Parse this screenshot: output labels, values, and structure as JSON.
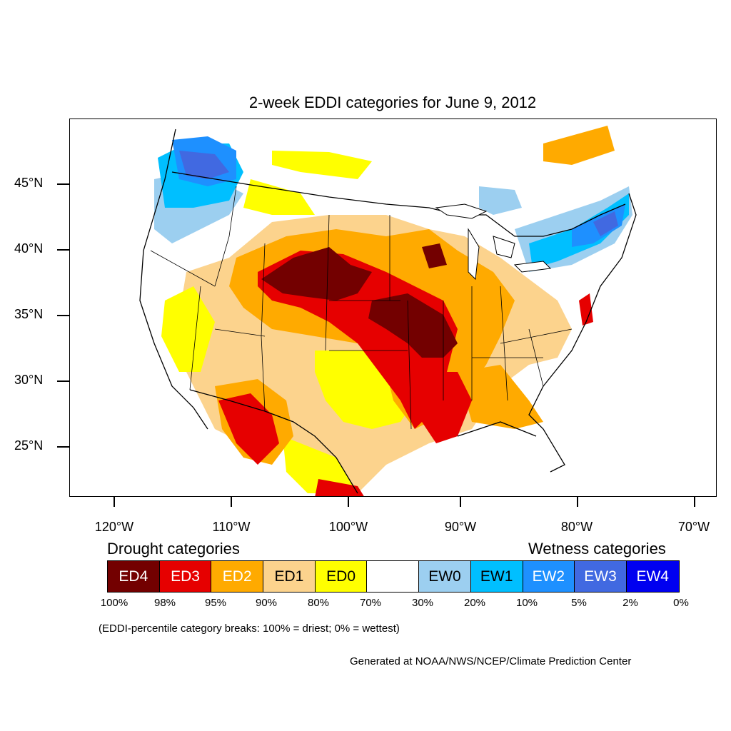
{
  "title": "2-week EDDI categories for June 9, 2012",
  "lat_labels": [
    "45°N",
    "40°N",
    "35°N",
    "30°N",
    "25°N"
  ],
  "lon_labels": [
    "120°W",
    "110°W",
    "100°W",
    "90°W",
    "80°W",
    "70°W"
  ],
  "legend": {
    "drought_heading": "Drought categories",
    "wetness_heading": "Wetness categories",
    "categories": [
      {
        "label": "ED4",
        "color": "#730000",
        "text_color": "#ffffff"
      },
      {
        "label": "ED3",
        "color": "#e60000",
        "text_color": "#ffffff"
      },
      {
        "label": "ED2",
        "color": "#ffaa00",
        "text_color": "#ffffff"
      },
      {
        "label": "ED1",
        "color": "#fcd38d",
        "text_color": "#000000"
      },
      {
        "label": "ED0",
        "color": "#ffff00",
        "text_color": "#000000"
      },
      {
        "label": "",
        "color": "#ffffff",
        "text_color": "#000000"
      },
      {
        "label": "EW0",
        "color": "#9ccff0",
        "text_color": "#000000"
      },
      {
        "label": "EW1",
        "color": "#00bfff",
        "text_color": "#000000"
      },
      {
        "label": "EW2",
        "color": "#1e90ff",
        "text_color": "#ffffff"
      },
      {
        "label": "EW3",
        "color": "#4169e1",
        "text_color": "#ffffff"
      },
      {
        "label": "EW4",
        "color": "#0000f0",
        "text_color": "#ffffff"
      }
    ],
    "percentiles": [
      "100%",
      "98%",
      "95%",
      "90%",
      "80%",
      "70%",
      "30%",
      "20%",
      "10%",
      "5%",
      "2%",
      "0%"
    ]
  },
  "note": "(EDDI-percentile category breaks: 100% = driest; 0% = wettest)",
  "credit": "Generated at NOAA/NWS/NCEP/Climate Prediction Center"
}
